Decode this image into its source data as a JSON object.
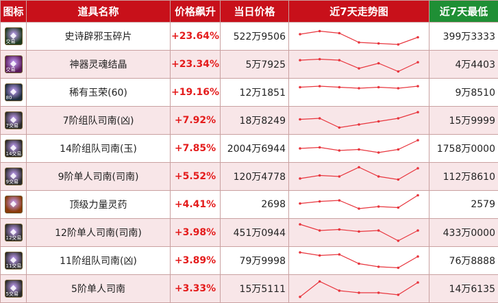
{
  "header": {
    "icon": "图标",
    "name": "道具名称",
    "rise": "价格飙升",
    "today": "当日价格",
    "trend": "近7天走势图",
    "low": "近7天最低"
  },
  "rows": [
    {
      "icon": "epic-purple-shard-icon",
      "icon_text": "交易",
      "icon_color": "#1e3a1e",
      "name": "史诗辟邪玉碎片",
      "rise": "+23.64%",
      "price": "522万9506",
      "low": "399万3333",
      "trend": [
        0.6,
        0.75,
        0.65,
        0.2,
        0.15,
        0.1,
        0.45
      ]
    },
    {
      "icon": "artifact-soul-crystal-icon",
      "icon_text": "交易",
      "icon_color": "#5a1a5a",
      "name": "神器灵魂结晶",
      "rise": "+23.34%",
      "price": "5万7925",
      "low": "4万4403",
      "trend": [
        0.7,
        0.75,
        0.7,
        0.3,
        0.55,
        0.15,
        0.6
      ]
    },
    {
      "icon": "rare-jade-glory-icon",
      "icon_text": "80",
      "icon_color": "#1e2e3e",
      "name": "稀有玉荣(60)",
      "rise": "+19.16%",
      "price": "12万1851",
      "low": "9万8510",
      "trend": [
        0.75,
        0.8,
        0.75,
        0.7,
        0.75,
        0.7,
        0.8
      ]
    },
    {
      "icon": "tier7-team-compass-icon",
      "icon_text": "7交易",
      "icon_color": "#2c2c2c",
      "name": "7阶组队司南(凶)",
      "rise": "+7.92%",
      "price": "18万8249",
      "low": "15万9999",
      "trend": [
        0.55,
        0.6,
        0.15,
        0.3,
        0.45,
        0.6,
        0.9
      ]
    },
    {
      "icon": "tier14-team-compass-icon",
      "icon_text": "14交易",
      "icon_color": "#2c2c2c",
      "name": "14阶组队司南(玉)",
      "rise": "+7.85%",
      "price": "2004万6944",
      "low": "1758万0000",
      "trend": [
        0.5,
        0.55,
        0.4,
        0.45,
        0.3,
        0.45,
        0.9
      ]
    },
    {
      "icon": "tier9-solo-compass-icon",
      "icon_text": "9交易",
      "icon_color": "#2c2c2c",
      "name": "9阶单人司南(司南)",
      "rise": "+5.52%",
      "price": "120万4778",
      "low": "112万8610",
      "trend": [
        0.4,
        0.55,
        0.5,
        0.95,
        0.5,
        0.35,
        0.9
      ]
    },
    {
      "icon": "top-strength-potion-icon",
      "icon_text": "",
      "icon_color": "#8a3a0a",
      "name": "顶级力量灵药",
      "rise": "+4.41%",
      "price": "2698",
      "low": "2579",
      "trend": [
        0.55,
        0.65,
        0.7,
        0.3,
        0.4,
        0.35,
        0.95
      ]
    },
    {
      "icon": "tier12-solo-compass-icon",
      "icon_text": "12交易",
      "icon_color": "#2c2c2c",
      "name": "12阶单人司南(司南)",
      "rise": "+3.98%",
      "price": "451万0944",
      "low": "433万0000",
      "trend": [
        0.9,
        0.6,
        0.65,
        0.55,
        0.6,
        0.1,
        0.6
      ]
    },
    {
      "icon": "tier11-team-compass-icon",
      "icon_text": "11交易",
      "icon_color": "#2c2c2c",
      "name": "11阶组队司南(凶)",
      "rise": "+3.89%",
      "price": "79万9998",
      "low": "76万8888",
      "trend": [
        0.9,
        0.75,
        0.8,
        0.35,
        0.2,
        0.15,
        0.7
      ]
    },
    {
      "icon": "tier5-solo-compass-icon",
      "icon_text": "5交易",
      "icon_color": "#2c2c2c",
      "name": "5阶单人司南",
      "rise": "+3.33%",
      "price": "15万5111",
      "low": "14万6135",
      "trend": [
        0.1,
        0.85,
        0.4,
        0.3,
        0.3,
        0.2,
        0.8
      ]
    }
  ],
  "colors": {
    "accent": "#c8101a",
    "green_header": "#1f8f35",
    "line": "#e8353d",
    "rise": "#e41c1c"
  }
}
